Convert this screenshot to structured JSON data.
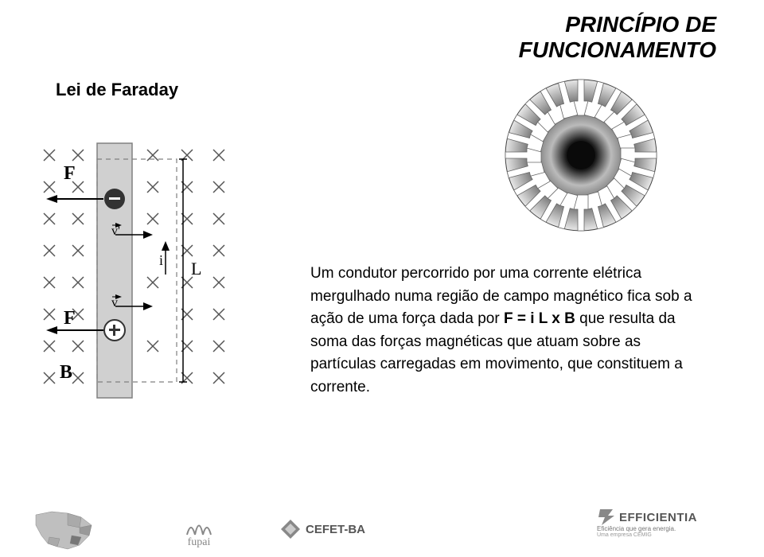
{
  "header": {
    "line1": "PRINCÍPIO DE",
    "line2": "FUNCIONAMENTO"
  },
  "subtitle": "Lei de Faraday",
  "paragraph": {
    "part1": "Um condutor percorrido por uma corrente elétrica mergulhado numa região de campo magnético fica sob a ação de uma força dada por ",
    "formula": "F = i L x B",
    "part2": " que resulta da soma das forças magnéticas que atuam sobre as partículas carregadas em movimento, que constituem a corrente."
  },
  "left_diagram": {
    "labels": {
      "F_top": "F",
      "F_bottom": "F",
      "B": "B",
      "i": "i",
      "L": "L",
      "v_top": "v'",
      "v_bottom": "v"
    },
    "colors": {
      "bar_fill": "#d0d0d0",
      "bar_border": "#808080",
      "x_marks": "#555555",
      "arrow": "#000000",
      "dashed": "#808080",
      "neg_charge": "#333333",
      "pos_charge_border": "#333333",
      "pos_charge_fill": "#ffffff",
      "text": "#000000"
    },
    "grid": {
      "rows": 8,
      "cols": 5
    },
    "font_size_label": 20
  },
  "rotor": {
    "outer_radius": 95,
    "inner_core": 18,
    "slot_count": 24,
    "colors": {
      "gradient_light": "#f0f0f0",
      "gradient_mid": "#999999",
      "gradient_dark": "#1a1a1a",
      "slot_fill": "#ffffff",
      "slot_stroke": "#666666"
    }
  },
  "footer": {
    "fupai": "fupai",
    "cefet": "CEFET-BA",
    "efficientia_title": "EFFICIENTIA",
    "efficientia_tag": "Eficiência que gera energia.",
    "efficientia_sub": "Uma empresa CEMIG"
  },
  "typography": {
    "header_fontsize": 28,
    "subtitle_fontsize": 22,
    "body_fontsize": 19
  }
}
